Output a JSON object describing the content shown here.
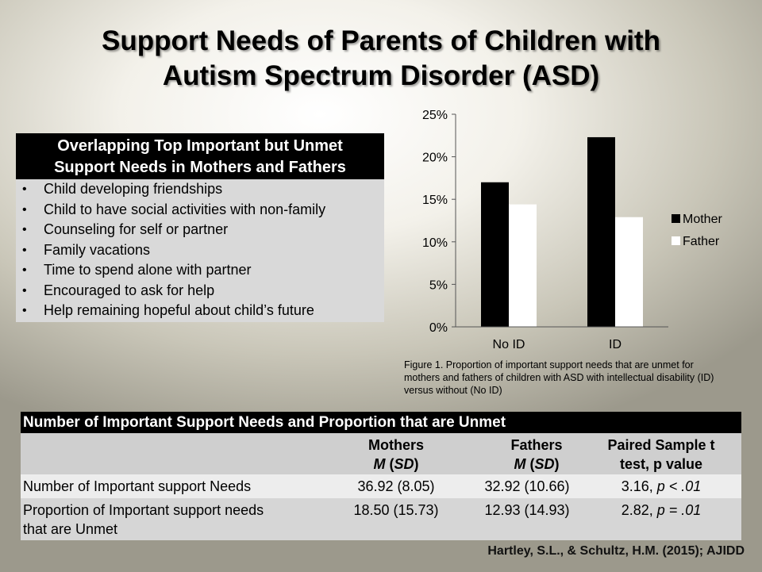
{
  "title": {
    "line1": "Support Needs of Parents of Children with",
    "line2": "Autism Spectrum Disorder (ASD)"
  },
  "needs_box": {
    "heading_line1": "Overlapping Top Important but Unmet",
    "heading_line2": "Support Needs in Mothers and Fathers",
    "bullet": "•",
    "items": [
      "Child developing  friendships",
      "Child to have social activities with non-family",
      "Counseling  for self or partner",
      "Family vacations",
      "Time to spend alone with partner",
      "Encouraged  to ask for help",
      "Help remaining  hopeful about child’s future"
    ]
  },
  "chart_data": {
    "type": "bar",
    "categories": [
      "No ID",
      "ID"
    ],
    "series": [
      {
        "name": "Mother",
        "values": [
          17.0,
          22.3
        ],
        "color": "#000000"
      },
      {
        "name": "Father",
        "values": [
          14.4,
          12.9
        ],
        "color": "#ffffff"
      }
    ],
    "ylim": [
      0,
      25
    ],
    "yticks": [
      0,
      5,
      10,
      15,
      20,
      25
    ],
    "ytick_labels": [
      "0%",
      "5%",
      "10%",
      "15%",
      "20%",
      "25%"
    ],
    "legend": "right",
    "grid": false
  },
  "caption": "Figure 1. Proportion of important support needs that are unmet for mothers and fathers of children with ASD with intellectual disability (ID) versus without (No ID)",
  "table": {
    "title": "Number of Important Support Needs and Proportion that are Unmet",
    "headers": [
      {
        "line1": "Mothers",
        "line2_m": "M",
        "line2_sd": "SD"
      },
      {
        "line1": "Fathers",
        "line2_m": "M",
        "line2_sd": "SD"
      },
      {
        "line1": "Paired Sample t",
        "line2": "test, p value"
      }
    ],
    "rows": [
      {
        "label": "Number of Important support Needs",
        "mothers": "36.92 (8.05)",
        "fathers": "32.92 (10.66)",
        "t": "3.16, ",
        "p": "p < .01"
      },
      {
        "label_line1": "Proportion of Important support needs",
        "label_line2": "that are Unmet",
        "mothers": "18.50 (15.73)",
        "fathers": "12.93 (14.93)",
        "t": "2.82, ",
        "p": "p = .01"
      }
    ]
  },
  "citation": "Hartley, S.L., & Schultz, H.M. (2015); AJIDD"
}
